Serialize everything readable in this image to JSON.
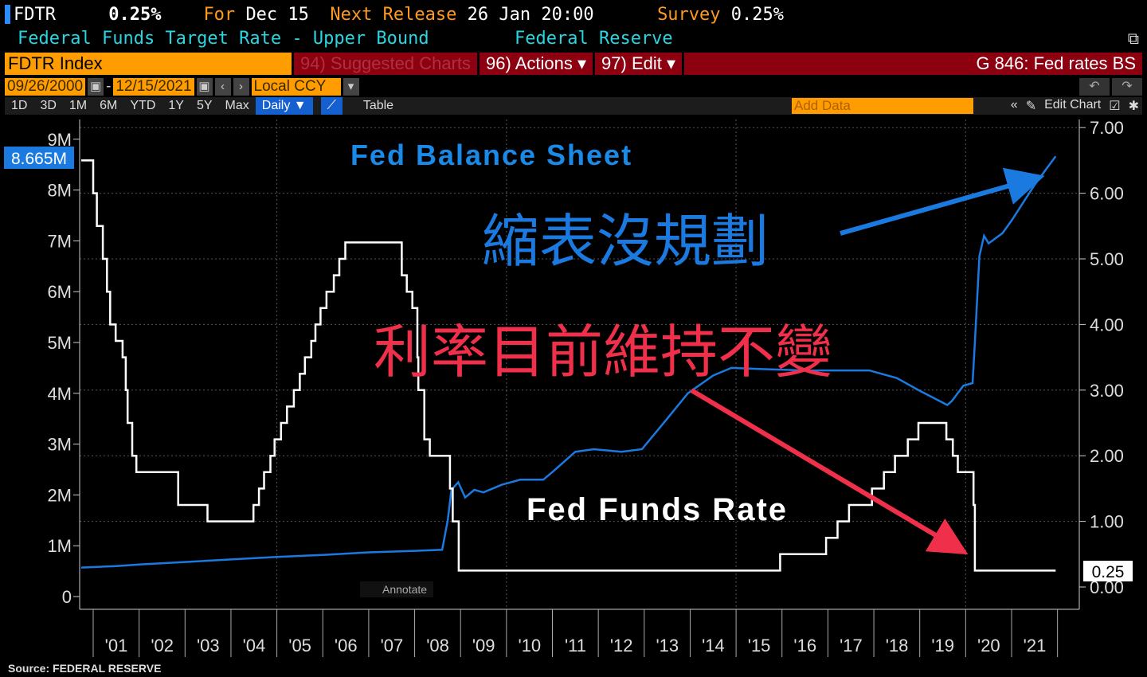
{
  "header": {
    "ticker": "FDTR",
    "value": "0.25%",
    "for_label": "For",
    "for_date": "Dec 15",
    "next_label": "Next Release",
    "next_date": "26 Jan 20:00",
    "survey_label": "Survey",
    "survey_value": "0.25%",
    "description": "Federal Funds Target Rate - Upper Bound",
    "source": "Federal Reserve"
  },
  "toolbar": {
    "security": "FDTR Index",
    "suggested": "94) Suggested Charts",
    "actions": "96) Actions ▾",
    "edit": "97) Edit ▾",
    "chart_name": "G 846: Fed rates BS",
    "start_date": "09/26/2000",
    "end_date": "12/15/2021",
    "currency": "Local CCY",
    "periods": [
      "1D",
      "3D",
      "1M",
      "6M",
      "YTD",
      "1Y",
      "5Y",
      "Max"
    ],
    "frequency": "Daily ▼",
    "table": "Table",
    "add_data_placeholder": "Add Data",
    "edit_chart": "Edit Chart"
  },
  "footer": {
    "source": "Source: FEDERAL RESERVE"
  },
  "colors": {
    "balance": "#1a7ae0",
    "rate": "#ffffff",
    "accent": "#ff9d00",
    "red_arrow": "#f0304a"
  },
  "chart_data": {
    "type": "line",
    "x_ticks": [
      "'01",
      "'02",
      "'03",
      "'04",
      "'05",
      "'06",
      "'07",
      "'08",
      "'09",
      "'10",
      "'11",
      "'12",
      "'13",
      "'14",
      "'15",
      "'16",
      "'17",
      "'18",
      "'19",
      "'20",
      "'21"
    ],
    "left_axis": {
      "ticks": [
        "0",
        "1M",
        "2M",
        "3M",
        "4M",
        "5M",
        "6M",
        "7M",
        "8M",
        "9M"
      ],
      "ylim": [
        0,
        9
      ]
    },
    "right_axis": {
      "ticks": [
        "0.00",
        "1.00",
        "2.00",
        "3.00",
        "4.00",
        "5.00",
        "6.00",
        "7.00"
      ],
      "ylim": [
        0,
        7
      ]
    },
    "annotate": "Annotate",
    "series": [
      {
        "name": "Fed Balance Sheet",
        "axis": "left",
        "unit": "M",
        "last_label": "8.665M",
        "points": [
          [
            2000.74,
            0.57
          ],
          [
            2001.5,
            0.6
          ],
          [
            2002,
            0.63
          ],
          [
            2003,
            0.68
          ],
          [
            2004,
            0.73
          ],
          [
            2005,
            0.78
          ],
          [
            2006,
            0.82
          ],
          [
            2007,
            0.87
          ],
          [
            2008,
            0.9
          ],
          [
            2008.6,
            0.92
          ],
          [
            2008.72,
            1.5
          ],
          [
            2008.8,
            2.1
          ],
          [
            2008.95,
            2.25
          ],
          [
            2009.1,
            1.95
          ],
          [
            2009.3,
            2.1
          ],
          [
            2009.5,
            2.05
          ],
          [
            2009.9,
            2.2
          ],
          [
            2010.3,
            2.3
          ],
          [
            2010.8,
            2.3
          ],
          [
            2011,
            2.45
          ],
          [
            2011.5,
            2.85
          ],
          [
            2011.9,
            2.9
          ],
          [
            2012.5,
            2.85
          ],
          [
            2012.95,
            2.9
          ],
          [
            2013.5,
            3.5
          ],
          [
            2013.95,
            4.0
          ],
          [
            2014.5,
            4.35
          ],
          [
            2014.9,
            4.5
          ],
          [
            2015.5,
            4.48
          ],
          [
            2016.5,
            4.45
          ],
          [
            2017.9,
            4.45
          ],
          [
            2018.5,
            4.3
          ],
          [
            2019,
            4.05
          ],
          [
            2019.6,
            3.77
          ],
          [
            2019.7,
            3.85
          ],
          [
            2019.95,
            4.15
          ],
          [
            2020.15,
            4.2
          ],
          [
            2020.2,
            5.0
          ],
          [
            2020.3,
            6.7
          ],
          [
            2020.4,
            7.1
          ],
          [
            2020.5,
            6.95
          ],
          [
            2020.8,
            7.15
          ],
          [
            2021,
            7.4
          ],
          [
            2021.5,
            8.1
          ],
          [
            2021.96,
            8.665
          ]
        ]
      },
      {
        "name": "Fed Funds Rate",
        "axis": "right",
        "unit": "%",
        "last_label": "0.25",
        "points": [
          [
            2000.74,
            6.5
          ],
          [
            2001.0,
            6.0
          ],
          [
            2001.08,
            5.5
          ],
          [
            2001.21,
            5.0
          ],
          [
            2001.3,
            4.5
          ],
          [
            2001.37,
            4.0
          ],
          [
            2001.49,
            3.75
          ],
          [
            2001.64,
            3.5
          ],
          [
            2001.71,
            3.0
          ],
          [
            2001.75,
            2.5
          ],
          [
            2001.85,
            2.0
          ],
          [
            2001.94,
            1.75
          ],
          [
            2002.85,
            1.25
          ],
          [
            2003.49,
            1.0
          ],
          [
            2004.49,
            1.25
          ],
          [
            2004.61,
            1.5
          ],
          [
            2004.72,
            1.75
          ],
          [
            2004.86,
            2.0
          ],
          [
            2004.95,
            2.25
          ],
          [
            2005.09,
            2.5
          ],
          [
            2005.22,
            2.75
          ],
          [
            2005.37,
            3.0
          ],
          [
            2005.5,
            3.25
          ],
          [
            2005.61,
            3.5
          ],
          [
            2005.75,
            3.75
          ],
          [
            2005.84,
            4.0
          ],
          [
            2005.95,
            4.25
          ],
          [
            2006.08,
            4.5
          ],
          [
            2006.24,
            4.75
          ],
          [
            2006.36,
            5.0
          ],
          [
            2006.49,
            5.25
          ],
          [
            2007.72,
            4.75
          ],
          [
            2007.83,
            4.5
          ],
          [
            2007.95,
            4.25
          ],
          [
            2008.06,
            3.5
          ],
          [
            2008.08,
            3.0
          ],
          [
            2008.21,
            2.25
          ],
          [
            2008.33,
            2.0
          ],
          [
            2008.77,
            1.5
          ],
          [
            2008.83,
            1.0
          ],
          [
            2008.96,
            0.25
          ],
          [
            2015.96,
            0.5
          ],
          [
            2016.96,
            0.75
          ],
          [
            2017.21,
            1.0
          ],
          [
            2017.46,
            1.25
          ],
          [
            2017.96,
            1.5
          ],
          [
            2018.22,
            1.75
          ],
          [
            2018.46,
            2.0
          ],
          [
            2018.74,
            2.25
          ],
          [
            2018.97,
            2.5
          ],
          [
            2019.58,
            2.25
          ],
          [
            2019.72,
            2.0
          ],
          [
            2019.83,
            1.75
          ],
          [
            2020.17,
            1.25
          ],
          [
            2020.2,
            0.25
          ],
          [
            2021.96,
            0.25
          ]
        ]
      }
    ],
    "annotations": {
      "balance_title": "Fed Balance Sheet",
      "rate_title": "Fed Funds Rate",
      "blue_text": "縮表沒規劃",
      "red_text": "利率目前維持不變"
    }
  }
}
